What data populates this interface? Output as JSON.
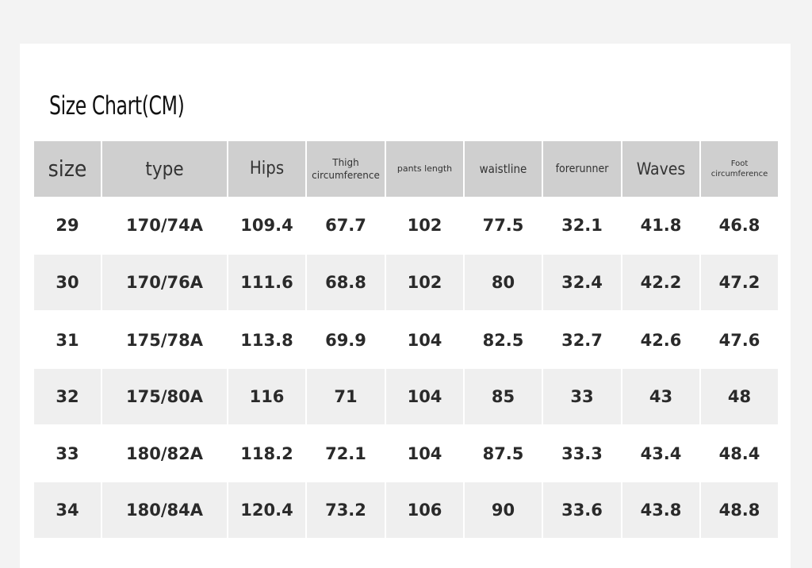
{
  "title": "Size Chart(CM)",
  "table": {
    "header": [
      "size",
      "type",
      "Hips",
      "Thigh circumference",
      "pants length",
      "waistline",
      "forerunner",
      "Waves",
      "Foot circumference"
    ],
    "rows": [
      [
        "29",
        "170/74A",
        "109.4",
        "67.7",
        "102",
        "77.5",
        "32.1",
        "41.8",
        "46.8"
      ],
      [
        "30",
        "170/76A",
        "111.6",
        "68.8",
        "102",
        "80",
        "32.4",
        "42.2",
        "47.2"
      ],
      [
        "31",
        "175/78A",
        "113.8",
        "69.9",
        "104",
        "82.5",
        "32.7",
        "42.6",
        "47.6"
      ],
      [
        "32",
        "175/80A",
        "116",
        "71",
        "104",
        "85",
        "33",
        "43",
        "48"
      ],
      [
        "33",
        "180/82A",
        "118.2",
        "72.1",
        "104",
        "87.5",
        "33.3",
        "43.4",
        "48.4"
      ],
      [
        "34",
        "180/84A",
        "120.4",
        "73.2",
        "106",
        "90",
        "33.6",
        "43.8",
        "48.8"
      ]
    ]
  }
}
